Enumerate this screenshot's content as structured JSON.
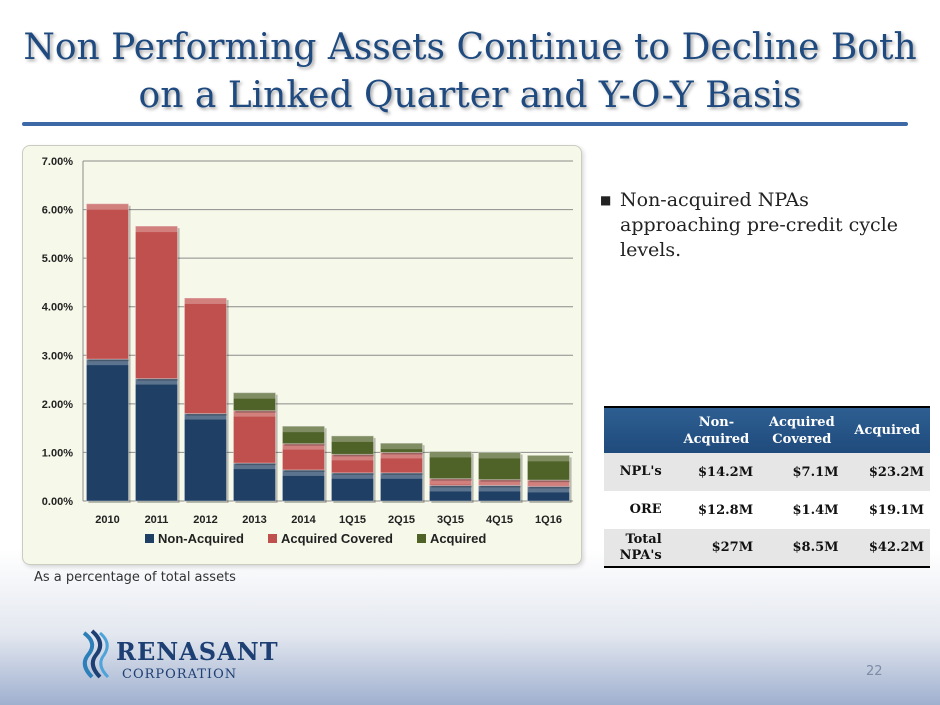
{
  "slide": {
    "title_line1": "Non Performing Assets Continue to Decline Both",
    "title_line2": "on a Linked Quarter and Y-O-Y Basis",
    "footnote": "As a percentage of total assets",
    "bullet": "Non-acquired NPAs approaching pre-credit cycle levels.",
    "page_number": "22"
  },
  "logo": {
    "name": "RENASANT",
    "sub": "CORPORATION"
  },
  "table": {
    "headers": [
      "",
      "Non-\nAcquired",
      "Acquired\nCovered",
      "Acquired"
    ],
    "rows": [
      {
        "label": "NPL's",
        "values": [
          "$14.2M",
          "$7.1M",
          "$23.2M"
        ]
      },
      {
        "label": "ORE",
        "values": [
          "$12.8M",
          "$1.4M",
          "$19.1M"
        ]
      },
      {
        "label": "Total NPA's",
        "values": [
          "$27M",
          "$8.5M",
          "$42.2M"
        ]
      }
    ]
  },
  "chart_data": {
    "type": "bar",
    "stacked": true,
    "categories": [
      "2010",
      "2011",
      "2012",
      "2013",
      "2014",
      "1Q15",
      "2Q15",
      "3Q15",
      "4Q15",
      "1Q16"
    ],
    "series": [
      {
        "name": "Non-Acquired",
        "color": "#1f3f64",
        "values": [
          2.92,
          2.52,
          1.8,
          0.78,
          0.64,
          0.58,
          0.58,
          0.32,
          0.32,
          0.3
        ]
      },
      {
        "name": "Acquired Covered",
        "color": "#c0504d",
        "values": [
          3.2,
          3.14,
          2.38,
          1.08,
          0.54,
          0.38,
          0.42,
          0.14,
          0.12,
          0.13
        ]
      },
      {
        "name": "Acquired",
        "color": "#4f6228",
        "values": [
          0.0,
          0.0,
          0.0,
          0.37,
          0.36,
          0.38,
          0.19,
          0.56,
          0.56,
          0.51
        ]
      }
    ],
    "y_ticks": [
      "0.00%",
      "1.00%",
      "2.00%",
      "3.00%",
      "4.00%",
      "5.00%",
      "6.00%",
      "7.00%"
    ],
    "ylim": [
      0,
      7
    ],
    "grid": true,
    "legend_position": "bottom"
  }
}
